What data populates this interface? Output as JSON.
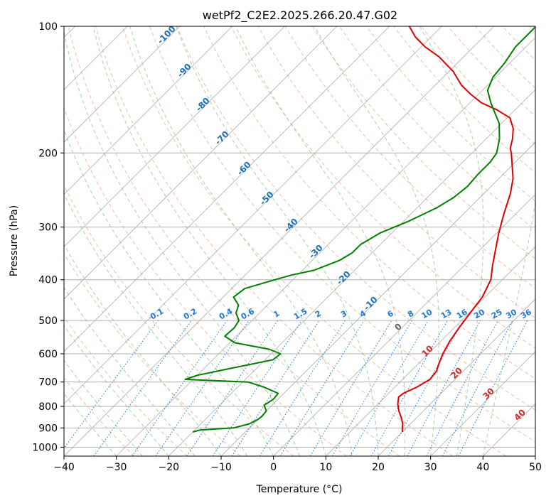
{
  "chart_data": {
    "type": "line",
    "subtype": "skew-T log-P diagram",
    "title": "wetPf2_C2E2.2025.266.20.47.G02",
    "xlabel": "Temperature (°C)",
    "ylabel": "Pressure (hPa)",
    "xlim": [
      -40,
      50
    ],
    "ylim": [
      1050,
      100
    ],
    "y_scale": "log",
    "x_ticks": [
      "−40",
      "−30",
      "−20",
      "−10",
      "0",
      "10",
      "20",
      "30",
      "40",
      "50"
    ],
    "y_ticks": [
      "100",
      "200",
      "300",
      "400",
      "500",
      "600",
      "700",
      "800",
      "900",
      "1000"
    ],
    "y_tick_values": [
      100,
      200,
      300,
      400,
      500,
      600,
      700,
      800,
      900,
      1000
    ],
    "grid": true,
    "series": [
      {
        "color": "#e00000",
        "points": [
          [
            920,
            20.0
          ],
          [
            905,
            19.4
          ],
          [
            880,
            18.5
          ],
          [
            850,
            17.0
          ],
          [
            820,
            15.3
          ],
          [
            790,
            13.8
          ],
          [
            760,
            12.6
          ],
          [
            745,
            12.8
          ],
          [
            720,
            14.2
          ],
          [
            690,
            15.2
          ],
          [
            660,
            14.9
          ],
          [
            630,
            13.8
          ],
          [
            600,
            12.8
          ],
          [
            560,
            11.7
          ],
          [
            520,
            10.9
          ],
          [
            480,
            10.2
          ],
          [
            440,
            9.5
          ],
          [
            400,
            7.8
          ],
          [
            370,
            5.4
          ],
          [
            340,
            3.0
          ],
          [
            310,
            0.4
          ],
          [
            280,
            -2.2
          ],
          [
            250,
            -4.9
          ],
          [
            230,
            -7.3
          ],
          [
            215,
            -9.8
          ],
          [
            200,
            -12.5
          ],
          [
            195,
            -13.6
          ],
          [
            185,
            -15.0
          ],
          [
            175,
            -16.8
          ],
          [
            165,
            -19.5
          ],
          [
            158,
            -23.5
          ],
          [
            152,
            -27.8
          ],
          [
            145,
            -31.5
          ],
          [
            138,
            -35.0
          ],
          [
            128,
            -39.2
          ],
          [
            118,
            -44.8
          ],
          [
            112,
            -49.2
          ],
          [
            106,
            -53.0
          ],
          [
            100,
            -56.2
          ]
        ]
      },
      {
        "color": "#008000",
        "points": [
          [
            920,
            -20.0
          ],
          [
            910,
            -19.0
          ],
          [
            900,
            -13.0
          ],
          [
            880,
            -10.8
          ],
          [
            860,
            -10.0
          ],
          [
            845,
            -9.8
          ],
          [
            820,
            -10.0
          ],
          [
            795,
            -11.5
          ],
          [
            770,
            -10.9
          ],
          [
            745,
            -11.1
          ],
          [
            720,
            -15.0
          ],
          [
            700,
            -19.0
          ],
          [
            690,
            -31.5
          ],
          [
            675,
            -30.0
          ],
          [
            650,
            -25.0
          ],
          [
            620,
            -18.5
          ],
          [
            600,
            -18.2
          ],
          [
            585,
            -21.3
          ],
          [
            565,
            -29.0
          ],
          [
            545,
            -32.2
          ],
          [
            520,
            -32.0
          ],
          [
            500,
            -32.5
          ],
          [
            480,
            -34.5
          ],
          [
            460,
            -35.5
          ],
          [
            440,
            -38.0
          ],
          [
            420,
            -37.5
          ],
          [
            405,
            -34.5
          ],
          [
            390,
            -31.2
          ],
          [
            380,
            -27.8
          ],
          [
            360,
            -24.8
          ],
          [
            345,
            -23.8
          ],
          [
            330,
            -23.8
          ],
          [
            310,
            -22.3
          ],
          [
            290,
            -19.0
          ],
          [
            270,
            -16.3
          ],
          [
            255,
            -15.0
          ],
          [
            240,
            -14.5
          ],
          [
            225,
            -14.8
          ],
          [
            210,
            -14.8
          ],
          [
            200,
            -15.3
          ],
          [
            185,
            -17.5
          ],
          [
            170,
            -20.5
          ],
          [
            160,
            -23.5
          ],
          [
            152,
            -26.0
          ],
          [
            142,
            -29.0
          ],
          [
            132,
            -30.5
          ],
          [
            122,
            -31.0
          ],
          [
            112,
            -32.0
          ],
          [
            100,
            -32.0
          ]
        ]
      }
    ],
    "dry_adiabat_labels": [
      "-100",
      "-90",
      "-80",
      "-70",
      "-60",
      "-50",
      "-40",
      "-30",
      "-20",
      "-10",
      "0",
      "10",
      "20",
      "30",
      "40"
    ],
    "mixing_ratio_labels": [
      "0.1",
      "0.2",
      "0.4",
      "0.6",
      "1",
      "1.5",
      "2",
      "3",
      "4",
      "6",
      "8",
      "10",
      "13",
      "16",
      "20",
      "25",
      "30",
      "36"
    ],
    "colors": {
      "temperature": "#e00000",
      "dewpoint": "#008000",
      "grid": "#b0b0b0",
      "skewed_isotherms": "#999999",
      "dry_adiabats": "#f4a582",
      "moist_adiabats": "#8fc98f",
      "mixing_ratio": "#1f77d4",
      "adiabat_labels": "#1f6fb5",
      "warm_labels": "#d62728"
    }
  }
}
